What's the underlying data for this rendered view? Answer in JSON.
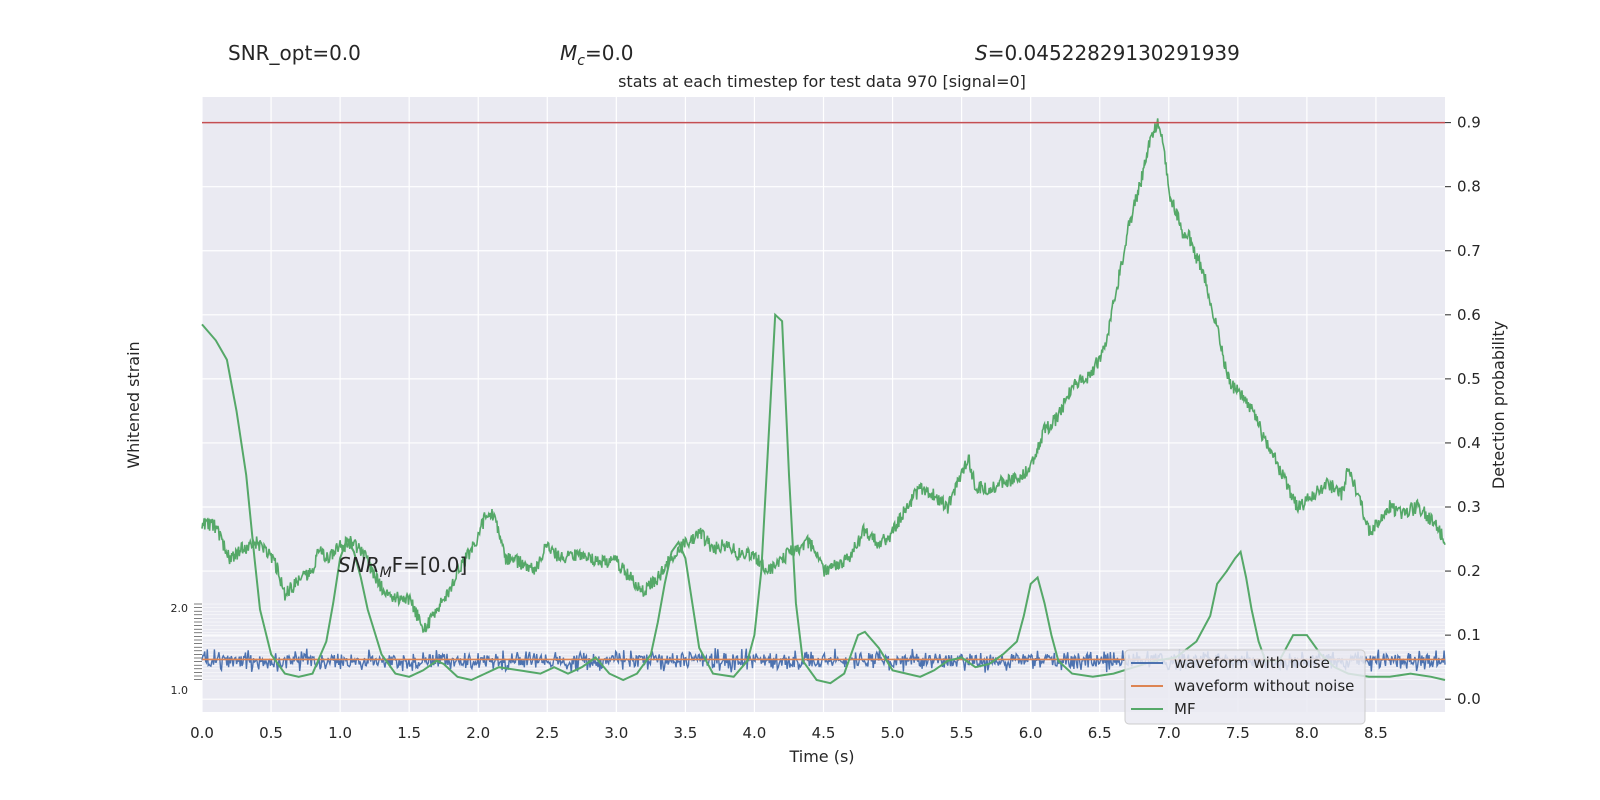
{
  "header": {
    "snr_opt": "SNR_opt=0.0",
    "mc_symbol": "M",
    "mc_sub": "c",
    "mc_value": "=0.0",
    "s_symbol": "S",
    "s_value": "=0.04522829130291939"
  },
  "chart_data": {
    "type": "line",
    "title": "stats at each timestep for test data 970 [signal=0]",
    "xlabel": "Time (s)",
    "ylabel_left": "Whitened strain",
    "ylabel_right": "Detection probability",
    "xlim": [
      0.0,
      9.0
    ],
    "ylim_right": [
      -0.02,
      0.94
    ],
    "x_ticks": [
      "0.0",
      "0.5",
      "1.0",
      "1.5",
      "2.0",
      "2.5",
      "3.0",
      "3.5",
      "4.0",
      "4.5",
      "5.0",
      "5.5",
      "6.0",
      "6.5",
      "7.0",
      "7.5",
      "8.0",
      "8.5"
    ],
    "y_ticks_right": [
      "0.0",
      "0.1",
      "0.2",
      "0.3",
      "0.4",
      "0.5",
      "0.6",
      "0.7",
      "0.8",
      "0.9"
    ],
    "left_axis_tick_labels": [
      "2.0",
      "1.0"
    ],
    "threshold": {
      "value": 0.9,
      "color": "#c44e52"
    },
    "annotation": {
      "base": "SNR",
      "sub": "M",
      "rest": "F=[0.0]"
    },
    "grid": true,
    "legend_placement": "lower-right",
    "series": [
      {
        "name": "waveform with noise",
        "color": "#4c72b0",
        "level": 0.06,
        "amplitude": 0.022
      },
      {
        "name": "waveform without noise",
        "color": "#dd8452",
        "level": 0.062
      },
      {
        "name": "MF",
        "color": "#55a868",
        "smooth_points": [
          [
            0.0,
            0.585
          ],
          [
            0.1,
            0.56
          ],
          [
            0.18,
            0.53
          ],
          [
            0.25,
            0.45
          ],
          [
            0.32,
            0.35
          ],
          [
            0.38,
            0.22
          ],
          [
            0.42,
            0.14
          ],
          [
            0.5,
            0.07
          ],
          [
            0.6,
            0.04
          ],
          [
            0.7,
            0.035
          ],
          [
            0.8,
            0.04
          ],
          [
            0.9,
            0.09
          ],
          [
            0.95,
            0.15
          ],
          [
            1.0,
            0.22
          ],
          [
            1.05,
            0.25
          ],
          [
            1.1,
            0.23
          ],
          [
            1.15,
            0.19
          ],
          [
            1.2,
            0.14
          ],
          [
            1.3,
            0.07
          ],
          [
            1.4,
            0.04
          ],
          [
            1.5,
            0.035
          ],
          [
            1.6,
            0.045
          ],
          [
            1.7,
            0.06
          ],
          [
            1.75,
            0.055
          ],
          [
            1.85,
            0.035
          ],
          [
            1.95,
            0.03
          ],
          [
            2.05,
            0.04
          ],
          [
            2.15,
            0.05
          ],
          [
            2.3,
            0.045
          ],
          [
            2.45,
            0.04
          ],
          [
            2.55,
            0.05
          ],
          [
            2.65,
            0.04
          ],
          [
            2.75,
            0.05
          ],
          [
            2.85,
            0.065
          ],
          [
            2.95,
            0.04
          ],
          [
            3.05,
            0.03
          ],
          [
            3.15,
            0.04
          ],
          [
            3.25,
            0.07
          ],
          [
            3.3,
            0.12
          ],
          [
            3.35,
            0.18
          ],
          [
            3.4,
            0.23
          ],
          [
            3.45,
            0.245
          ],
          [
            3.5,
            0.22
          ],
          [
            3.55,
            0.15
          ],
          [
            3.6,
            0.08
          ],
          [
            3.7,
            0.04
          ],
          [
            3.85,
            0.035
          ],
          [
            3.95,
            0.06
          ],
          [
            4.0,
            0.1
          ],
          [
            4.05,
            0.2
          ],
          [
            4.1,
            0.4
          ],
          [
            4.15,
            0.6
          ],
          [
            4.2,
            0.59
          ],
          [
            4.25,
            0.35
          ],
          [
            4.3,
            0.15
          ],
          [
            4.35,
            0.06
          ],
          [
            4.45,
            0.03
          ],
          [
            4.55,
            0.025
          ],
          [
            4.65,
            0.04
          ],
          [
            4.7,
            0.07
          ],
          [
            4.75,
            0.1
          ],
          [
            4.8,
            0.105
          ],
          [
            4.9,
            0.08
          ],
          [
            5.0,
            0.045
          ],
          [
            5.1,
            0.04
          ],
          [
            5.2,
            0.035
          ],
          [
            5.3,
            0.045
          ],
          [
            5.4,
            0.06
          ],
          [
            5.5,
            0.065
          ],
          [
            5.6,
            0.05
          ],
          [
            5.7,
            0.055
          ],
          [
            5.8,
            0.07
          ],
          [
            5.9,
            0.09
          ],
          [
            5.95,
            0.13
          ],
          [
            6.0,
            0.18
          ],
          [
            6.05,
            0.19
          ],
          [
            6.1,
            0.15
          ],
          [
            6.15,
            0.1
          ],
          [
            6.2,
            0.06
          ],
          [
            6.3,
            0.04
          ],
          [
            6.45,
            0.035
          ],
          [
            6.6,
            0.04
          ],
          [
            6.75,
            0.05
          ],
          [
            6.9,
            0.06
          ],
          [
            7.05,
            0.065
          ],
          [
            7.2,
            0.09
          ],
          [
            7.3,
            0.13
          ],
          [
            7.35,
            0.18
          ],
          [
            7.42,
            0.2
          ],
          [
            7.48,
            0.22
          ],
          [
            7.52,
            0.23
          ],
          [
            7.56,
            0.19
          ],
          [
            7.6,
            0.14
          ],
          [
            7.65,
            0.09
          ],
          [
            7.7,
            0.06
          ],
          [
            7.8,
            0.06
          ],
          [
            7.9,
            0.1
          ],
          [
            8.0,
            0.1
          ],
          [
            8.1,
            0.07
          ],
          [
            8.2,
            0.05
          ],
          [
            8.3,
            0.04
          ],
          [
            8.45,
            0.035
          ],
          [
            8.6,
            0.035
          ],
          [
            8.75,
            0.04
          ],
          [
            8.9,
            0.035
          ],
          [
            9.0,
            0.03
          ]
        ],
        "rough_points": [
          [
            0.0,
            0.275
          ],
          [
            0.1,
            0.27
          ],
          [
            0.2,
            0.22
          ],
          [
            0.3,
            0.235
          ],
          [
            0.4,
            0.245
          ],
          [
            0.5,
            0.225
          ],
          [
            0.55,
            0.2
          ],
          [
            0.6,
            0.165
          ],
          [
            0.7,
            0.185
          ],
          [
            0.8,
            0.2
          ],
          [
            0.85,
            0.235
          ],
          [
            0.9,
            0.22
          ],
          [
            1.0,
            0.24
          ],
          [
            1.1,
            0.245
          ],
          [
            1.2,
            0.215
          ],
          [
            1.3,
            0.175
          ],
          [
            1.4,
            0.16
          ],
          [
            1.5,
            0.155
          ],
          [
            1.55,
            0.135
          ],
          [
            1.6,
            0.11
          ],
          [
            1.7,
            0.135
          ],
          [
            1.75,
            0.16
          ],
          [
            1.8,
            0.17
          ],
          [
            1.85,
            0.205
          ],
          [
            1.9,
            0.215
          ],
          [
            1.95,
            0.235
          ],
          [
            2.0,
            0.255
          ],
          [
            2.05,
            0.285
          ],
          [
            2.1,
            0.29
          ],
          [
            2.15,
            0.265
          ],
          [
            2.2,
            0.22
          ],
          [
            2.3,
            0.215
          ],
          [
            2.4,
            0.2
          ],
          [
            2.5,
            0.24
          ],
          [
            2.6,
            0.22
          ],
          [
            2.7,
            0.225
          ],
          [
            2.8,
            0.22
          ],
          [
            2.9,
            0.215
          ],
          [
            3.0,
            0.215
          ],
          [
            3.1,
            0.19
          ],
          [
            3.2,
            0.17
          ],
          [
            3.3,
            0.19
          ],
          [
            3.4,
            0.22
          ],
          [
            3.5,
            0.245
          ],
          [
            3.55,
            0.25
          ],
          [
            3.6,
            0.26
          ],
          [
            3.7,
            0.235
          ],
          [
            3.8,
            0.24
          ],
          [
            3.9,
            0.225
          ],
          [
            4.0,
            0.225
          ],
          [
            4.1,
            0.2
          ],
          [
            4.2,
            0.22
          ],
          [
            4.3,
            0.235
          ],
          [
            4.4,
            0.245
          ],
          [
            4.5,
            0.2
          ],
          [
            4.6,
            0.21
          ],
          [
            4.7,
            0.225
          ],
          [
            4.8,
            0.265
          ],
          [
            4.9,
            0.24
          ],
          [
            5.0,
            0.26
          ],
          [
            5.1,
            0.3
          ],
          [
            5.2,
            0.33
          ],
          [
            5.3,
            0.32
          ],
          [
            5.4,
            0.3
          ],
          [
            5.5,
            0.355
          ],
          [
            5.55,
            0.375
          ],
          [
            5.6,
            0.33
          ],
          [
            5.7,
            0.33
          ],
          [
            5.8,
            0.34
          ],
          [
            5.9,
            0.345
          ],
          [
            6.0,
            0.36
          ],
          [
            6.1,
            0.42
          ],
          [
            6.2,
            0.44
          ],
          [
            6.3,
            0.49
          ],
          [
            6.4,
            0.5
          ],
          [
            6.5,
            0.53
          ],
          [
            6.55,
            0.56
          ],
          [
            6.6,
            0.62
          ],
          [
            6.65,
            0.67
          ],
          [
            6.7,
            0.73
          ],
          [
            6.75,
            0.77
          ],
          [
            6.8,
            0.81
          ],
          [
            6.85,
            0.86
          ],
          [
            6.9,
            0.89
          ],
          [
            6.93,
            0.9
          ],
          [
            6.97,
            0.85
          ],
          [
            7.0,
            0.79
          ],
          [
            7.05,
            0.76
          ],
          [
            7.1,
            0.73
          ],
          [
            7.15,
            0.72
          ],
          [
            7.2,
            0.69
          ],
          [
            7.25,
            0.67
          ],
          [
            7.3,
            0.62
          ],
          [
            7.35,
            0.58
          ],
          [
            7.4,
            0.53
          ],
          [
            7.45,
            0.49
          ],
          [
            7.5,
            0.48
          ],
          [
            7.55,
            0.47
          ],
          [
            7.6,
            0.45
          ],
          [
            7.65,
            0.43
          ],
          [
            7.7,
            0.4
          ],
          [
            7.75,
            0.385
          ],
          [
            7.8,
            0.36
          ],
          [
            7.85,
            0.34
          ],
          [
            7.9,
            0.31
          ],
          [
            7.95,
            0.3
          ],
          [
            8.0,
            0.31
          ],
          [
            8.05,
            0.32
          ],
          [
            8.1,
            0.33
          ],
          [
            8.15,
            0.335
          ],
          [
            8.2,
            0.33
          ],
          [
            8.25,
            0.32
          ],
          [
            8.3,
            0.36
          ],
          [
            8.35,
            0.33
          ],
          [
            8.4,
            0.3
          ],
          [
            8.45,
            0.26
          ],
          [
            8.5,
            0.27
          ],
          [
            8.6,
            0.3
          ],
          [
            8.7,
            0.29
          ],
          [
            8.8,
            0.3
          ],
          [
            8.9,
            0.28
          ],
          [
            9.0,
            0.25
          ]
        ]
      }
    ]
  }
}
